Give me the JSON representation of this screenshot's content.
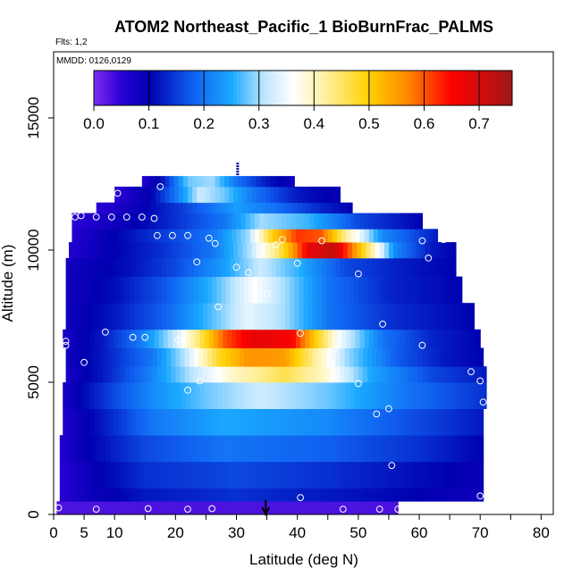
{
  "chart_data": {
    "type": "heatmap",
    "title": "ATOM2 Northeast_Pacific_1 BioBurnFrac_PALMS",
    "flights_label": "Flts: 1,2",
    "mmdd_label": "MMDD: 0126,0129",
    "xlabel": "Latitude (deg N)",
    "ylabel": "Altitude (m)",
    "xlim": [
      0,
      82
    ],
    "ylim": [
      0,
      17500
    ],
    "x_ticks": [
      0,
      5,
      10,
      20,
      30,
      40,
      50,
      60,
      70,
      80
    ],
    "y_ticks": [
      0,
      5000,
      10000,
      15000
    ],
    "colorbar": {
      "range": [
        0,
        0.76
      ],
      "ticks": [
        0.0,
        0.1,
        0.2,
        0.3,
        0.4,
        0.5,
        0.6,
        0.7
      ],
      "tick_labels": [
        "0.0",
        "0.1",
        "0.2",
        "0.3",
        "0.4",
        "0.5",
        "0.6",
        "0.7"
      ],
      "stops": [
        {
          "v": 0.0,
          "color": "#7f2cf0"
        },
        {
          "v": 0.05,
          "color": "#2a00d6"
        },
        {
          "v": 0.1,
          "color": "#0000b0"
        },
        {
          "v": 0.18,
          "color": "#1060f0"
        },
        {
          "v": 0.25,
          "color": "#1aa8ff"
        },
        {
          "v": 0.31,
          "color": "#bfe6ff"
        },
        {
          "v": 0.36,
          "color": "#ffffff"
        },
        {
          "v": 0.42,
          "color": "#fff0a0"
        },
        {
          "v": 0.5,
          "color": "#ffd000"
        },
        {
          "v": 0.57,
          "color": "#ff8800"
        },
        {
          "v": 0.65,
          "color": "#ff0000"
        },
        {
          "v": 0.76,
          "color": "#a01818"
        }
      ]
    },
    "layers": [
      {
        "alt": [
          0,
          500
        ],
        "lat": [
          0.5,
          56.5
        ],
        "seg": [
          [
            0.5,
            0.03
          ],
          [
            56.5,
            0.03
          ]
        ]
      },
      {
        "alt": [
          500,
          1000
        ],
        "lat": [
          1,
          70.5
        ],
        "seg": [
          [
            1,
            0.05
          ],
          [
            5,
            0.08
          ],
          [
            15,
            0.12
          ],
          [
            30,
            0.14
          ],
          [
            45,
            0.12
          ],
          [
            60,
            0.1
          ],
          [
            70.5,
            0.08
          ]
        ]
      },
      {
        "alt": [
          1000,
          2000
        ],
        "lat": [
          1,
          70.5
        ],
        "seg": [
          [
            1,
            0.05
          ],
          [
            6,
            0.09
          ],
          [
            15,
            0.14
          ],
          [
            30,
            0.16
          ],
          [
            45,
            0.14
          ],
          [
            60,
            0.11
          ],
          [
            70.5,
            0.09
          ]
        ]
      },
      {
        "alt": [
          2000,
          3000
        ],
        "lat": [
          1,
          70.5
        ],
        "seg": [
          [
            1,
            0.06
          ],
          [
            6,
            0.1
          ],
          [
            15,
            0.16
          ],
          [
            28,
            0.2
          ],
          [
            45,
            0.18
          ],
          [
            60,
            0.14
          ],
          [
            70.5,
            0.1
          ]
        ]
      },
      {
        "alt": [
          3000,
          4000
        ],
        "lat": [
          1.5,
          70.5
        ],
        "seg": [
          [
            1.5,
            0.06
          ],
          [
            8,
            0.12
          ],
          [
            16,
            0.2
          ],
          [
            28,
            0.25
          ],
          [
            45,
            0.22
          ],
          [
            60,
            0.16
          ],
          [
            70.5,
            0.12
          ]
        ]
      },
      {
        "alt": [
          4000,
          5000
        ],
        "lat": [
          1.5,
          71
        ],
        "seg": [
          [
            1.5,
            0.07
          ],
          [
            8,
            0.14
          ],
          [
            16,
            0.22
          ],
          [
            25,
            0.28
          ],
          [
            34,
            0.32
          ],
          [
            45,
            0.28
          ],
          [
            58,
            0.2
          ],
          [
            71,
            0.14
          ]
        ]
      },
      {
        "alt": [
          5000,
          5600
        ],
        "lat": [
          2,
          71
        ],
        "seg": [
          [
            2,
            0.07
          ],
          [
            8,
            0.12
          ],
          [
            15,
            0.2
          ],
          [
            22,
            0.3
          ],
          [
            30,
            0.4
          ],
          [
            38,
            0.46
          ],
          [
            44,
            0.4
          ],
          [
            52,
            0.25
          ],
          [
            62,
            0.16
          ],
          [
            71,
            0.12
          ]
        ]
      },
      {
        "alt": [
          5600,
          6300
        ],
        "lat": [
          2,
          70.5
        ],
        "seg": [
          [
            2,
            0.08
          ],
          [
            8,
            0.12
          ],
          [
            16,
            0.2
          ],
          [
            22,
            0.32
          ],
          [
            27,
            0.48
          ],
          [
            32,
            0.56
          ],
          [
            38,
            0.55
          ],
          [
            43,
            0.42
          ],
          [
            48,
            0.3
          ],
          [
            56,
            0.18
          ],
          [
            64,
            0.12
          ],
          [
            70.5,
            0.1
          ]
        ]
      },
      {
        "alt": [
          6300,
          7000
        ],
        "lat": [
          1.5,
          70
        ],
        "seg": [
          [
            1.5,
            0.07
          ],
          [
            8,
            0.12
          ],
          [
            14,
            0.2
          ],
          [
            20,
            0.32
          ],
          [
            24,
            0.45
          ],
          [
            28,
            0.6
          ],
          [
            33,
            0.68
          ],
          [
            39,
            0.66
          ],
          [
            43,
            0.5
          ],
          [
            47,
            0.35
          ],
          [
            54,
            0.2
          ],
          [
            62,
            0.13
          ],
          [
            70,
            0.1
          ]
        ]
      },
      {
        "alt": [
          7000,
          8000
        ],
        "lat": [
          2,
          69
        ],
        "seg": [
          [
            2,
            0.08
          ],
          [
            10,
            0.12
          ],
          [
            18,
            0.18
          ],
          [
            25,
            0.26
          ],
          [
            32,
            0.34
          ],
          [
            38,
            0.3
          ],
          [
            45,
            0.2
          ],
          [
            55,
            0.14
          ],
          [
            69,
            0.1
          ]
        ]
      },
      {
        "alt": [
          8000,
          9000
        ],
        "lat": [
          2,
          67
        ],
        "seg": [
          [
            2,
            0.08
          ],
          [
            10,
            0.11
          ],
          [
            18,
            0.17
          ],
          [
            26,
            0.26
          ],
          [
            33,
            0.36
          ],
          [
            38,
            0.3
          ],
          [
            45,
            0.2
          ],
          [
            55,
            0.13
          ],
          [
            67,
            0.1
          ]
        ]
      },
      {
        "alt": [
          9000,
          9700
        ],
        "lat": [
          2,
          66
        ],
        "seg": [
          [
            2,
            0.08
          ],
          [
            12,
            0.11
          ],
          [
            20,
            0.16
          ],
          [
            28,
            0.24
          ],
          [
            34,
            0.32
          ],
          [
            40,
            0.26
          ],
          [
            48,
            0.16
          ],
          [
            58,
            0.12
          ],
          [
            66,
            0.1
          ]
        ]
      },
      {
        "alt": [
          9700,
          10300
        ],
        "lat": [
          2.5,
          66
        ],
        "seg": [
          [
            2.5,
            0.06
          ],
          [
            10,
            0.1
          ],
          [
            18,
            0.14
          ],
          [
            26,
            0.2
          ],
          [
            32,
            0.3
          ],
          [
            37,
            0.45
          ],
          [
            42,
            0.68
          ],
          [
            46,
            0.72
          ],
          [
            51,
            0.48
          ],
          [
            56,
            0.22
          ],
          [
            62,
            0.12
          ],
          [
            66,
            0.1
          ]
        ]
      },
      {
        "alt": [
          10300,
          10800
        ],
        "lat": [
          3,
          63
        ],
        "seg": [
          [
            3,
            0.06
          ],
          [
            10,
            0.1
          ],
          [
            18,
            0.15
          ],
          [
            26,
            0.2
          ],
          [
            32,
            0.3
          ],
          [
            36,
            0.5
          ],
          [
            40,
            0.62
          ],
          [
            44,
            0.6
          ],
          [
            48,
            0.42
          ],
          [
            54,
            0.22
          ],
          [
            63,
            0.12
          ]
        ]
      },
      {
        "alt": [
          10800,
          11400
        ],
        "lat": [
          3,
          60.5
        ],
        "seg": [
          [
            3,
            0.05
          ],
          [
            12,
            0.09
          ],
          [
            20,
            0.14
          ],
          [
            28,
            0.2
          ],
          [
            34,
            0.3
          ],
          [
            42,
            0.26
          ],
          [
            50,
            0.16
          ],
          [
            60.5,
            0.1
          ]
        ]
      },
      {
        "alt": [
          11400,
          11800
        ],
        "lat": [
          7,
          49
        ],
        "seg": [
          [
            7,
            0.05
          ],
          [
            14,
            0.09
          ],
          [
            22,
            0.16
          ],
          [
            30,
            0.24
          ],
          [
            36,
            0.2
          ],
          [
            44,
            0.13
          ],
          [
            49,
            0.1
          ]
        ]
      },
      {
        "alt": [
          11800,
          12400
        ],
        "lat": [
          10,
          47
        ],
        "seg": [
          [
            10,
            0.05
          ],
          [
            16,
            0.1
          ],
          [
            20,
            0.2
          ],
          [
            24,
            0.32
          ],
          [
            28,
            0.28
          ],
          [
            33,
            0.2
          ],
          [
            40,
            0.12
          ],
          [
            47,
            0.09
          ]
        ]
      },
      {
        "alt": [
          12400,
          12800
        ],
        "lat": [
          14.5,
          39.5
        ],
        "seg": [
          [
            14.5,
            0.06
          ],
          [
            18,
            0.12
          ],
          [
            22,
            0.28
          ],
          [
            26,
            0.3
          ],
          [
            30,
            0.2
          ],
          [
            35,
            0.12
          ],
          [
            39.5,
            0.08
          ]
        ]
      }
    ],
    "points": [
      [
        0.8,
        250
      ],
      [
        7,
        200
      ],
      [
        15.5,
        220
      ],
      [
        22,
        200
      ],
      [
        26,
        220
      ],
      [
        47.5,
        200
      ],
      [
        53.5,
        200
      ],
      [
        56.5,
        200
      ],
      [
        40.5,
        640
      ],
      [
        70,
        700
      ],
      [
        55.5,
        1850
      ],
      [
        53,
        3800
      ],
      [
        55,
        4000
      ],
      [
        70.5,
        4250
      ],
      [
        50,
        4950
      ],
      [
        70,
        5050
      ],
      [
        68.5,
        5400
      ],
      [
        22,
        4700
      ],
      [
        24,
        5050
      ],
      [
        5,
        5750
      ],
      [
        45.5,
        5650
      ],
      [
        46,
        6250
      ],
      [
        2,
        6400
      ],
      [
        2,
        6550
      ],
      [
        8.5,
        6900
      ],
      [
        13,
        6700
      ],
      [
        15,
        6700
      ],
      [
        20.5,
        6600
      ],
      [
        40.5,
        6850
      ],
      [
        60.5,
        6400
      ],
      [
        54,
        7200
      ],
      [
        27,
        7850
      ],
      [
        35,
        8350
      ],
      [
        32,
        9150
      ],
      [
        30,
        9350
      ],
      [
        50,
        9100
      ],
      [
        23.5,
        9550
      ],
      [
        40,
        9500
      ],
      [
        61.5,
        9700
      ],
      [
        36.5,
        10200
      ],
      [
        26.5,
        10250
      ],
      [
        44,
        10350
      ],
      [
        25.5,
        10450
      ],
      [
        17,
        10550
      ],
      [
        19.5,
        10550
      ],
      [
        22,
        10550
      ],
      [
        37.5,
        10400
      ],
      [
        60.5,
        10350
      ],
      [
        64,
        10400
      ],
      [
        3.5,
        11250
      ],
      [
        4.5,
        11300
      ],
      [
        7,
        11250
      ],
      [
        9.5,
        11250
      ],
      [
        12,
        11250
      ],
      [
        14.5,
        11250
      ],
      [
        16.5,
        11200
      ],
      [
        66,
        10950
      ],
      [
        10.5,
        12150
      ],
      [
        17.5,
        12400
      ]
    ],
    "markers": [
      {
        "lat": 34.8,
        "alt": 550,
        "kind": "arrow"
      },
      {
        "lat": 30.2,
        "alt": 12900,
        "kind": "tick-column"
      }
    ]
  }
}
